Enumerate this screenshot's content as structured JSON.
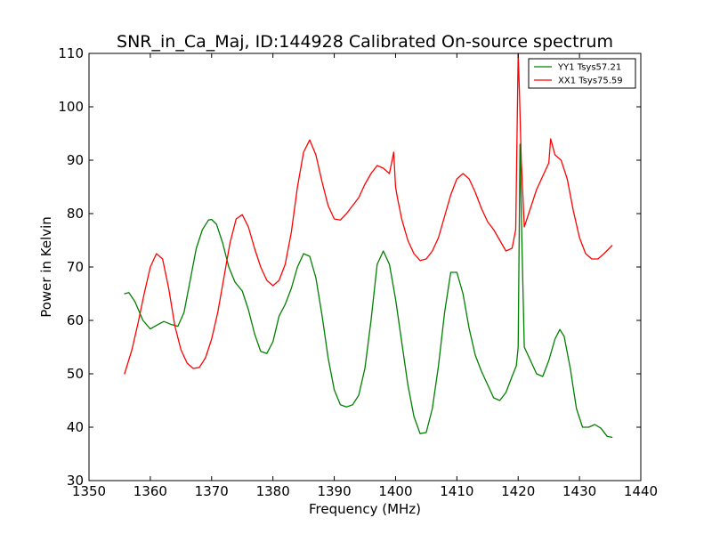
{
  "chart_data": {
    "type": "line",
    "title": "SNR_in_Ca_Maj, ID:144928 Calibrated On-source spectrum",
    "xlabel": "Frequency (MHz)",
    "ylabel": "Power in Kelvin",
    "xlim": [
      1350,
      1440
    ],
    "ylim": [
      30,
      110
    ],
    "xticks": [
      1350,
      1360,
      1370,
      1380,
      1390,
      1400,
      1410,
      1420,
      1430,
      1440
    ],
    "yticks": [
      30,
      40,
      50,
      60,
      70,
      80,
      90,
      100,
      110
    ],
    "grid": false,
    "legend_position": "top-right",
    "series": [
      {
        "name": "YY1 Tsys57.21",
        "color": "#008000",
        "x": [
          1355.8,
          1356.5,
          1357.5,
          1358.8,
          1360.0,
          1361.2,
          1362.2,
          1363.5,
          1364.5,
          1365.5,
          1366.5,
          1367.5,
          1368.5,
          1369.5,
          1370.0,
          1370.8,
          1371.8,
          1372.8,
          1373.8,
          1375.0,
          1376.0,
          1377.0,
          1378.0,
          1379.0,
          1380.0,
          1381.0,
          1382.0,
          1383.0,
          1384.0,
          1385.0,
          1386.0,
          1387.0,
          1388.0,
          1389.0,
          1390.0,
          1391.0,
          1392.0,
          1393.0,
          1394.0,
          1395.0,
          1396.0,
          1397.0,
          1398.0,
          1399.0,
          1400.0,
          1401.0,
          1402.0,
          1403.0,
          1404.0,
          1405.0,
          1406.0,
          1407.0,
          1408.0,
          1409.0,
          1410.0,
          1411.0,
          1412.0,
          1413.0,
          1414.0,
          1415.0,
          1416.0,
          1417.0,
          1418.0,
          1419.0,
          1419.7,
          1420.0,
          1420.3,
          1420.6,
          1421.0,
          1422.0,
          1423.0,
          1424.0,
          1425.0,
          1426.0,
          1426.8,
          1427.5,
          1428.5,
          1429.5,
          1430.5,
          1431.5,
          1432.5,
          1433.5,
          1434.5,
          1435.3
        ],
        "y": [
          65.0,
          65.2,
          63.5,
          60.0,
          58.4,
          59.2,
          59.8,
          59.2,
          58.9,
          61.5,
          67.5,
          73.5,
          77.0,
          78.8,
          78.9,
          78.0,
          74.5,
          70.0,
          67.2,
          65.5,
          62.0,
          57.5,
          54.2,
          53.8,
          56.0,
          60.8,
          63.0,
          66.0,
          70.0,
          72.5,
          72.0,
          68.0,
          61.0,
          53.0,
          47.0,
          44.2,
          43.8,
          44.2,
          46.0,
          51.0,
          60.0,
          70.5,
          73.0,
          70.5,
          64.0,
          56.0,
          48.0,
          42.0,
          38.8,
          39.0,
          43.5,
          51.5,
          61.5,
          69.0,
          69.0,
          65.0,
          58.5,
          53.5,
          50.5,
          48.0,
          45.5,
          45.0,
          46.5,
          49.5,
          51.5,
          55.0,
          93.0,
          75.0,
          55.0,
          52.5,
          50.0,
          49.5,
          52.5,
          56.5,
          58.3,
          57.0,
          51.0,
          43.5,
          40.0,
          40.0,
          40.5,
          39.8,
          38.3,
          38.1
        ]
      },
      {
        "name": "XX1 Tsys75.59",
        "color": "#ff0000",
        "x": [
          1355.8,
          1357.0,
          1358.0,
          1359.0,
          1360.0,
          1361.0,
          1362.0,
          1363.0,
          1364.0,
          1365.0,
          1366.0,
          1367.0,
          1368.0,
          1369.0,
          1370.0,
          1371.0,
          1372.0,
          1373.0,
          1374.0,
          1375.0,
          1376.0,
          1377.0,
          1378.0,
          1379.0,
          1380.0,
          1381.0,
          1382.0,
          1383.0,
          1384.0,
          1385.0,
          1386.0,
          1387.0,
          1388.0,
          1389.0,
          1390.0,
          1391.0,
          1392.0,
          1393.0,
          1394.0,
          1395.0,
          1396.0,
          1397.0,
          1398.0,
          1399.0,
          1399.7,
          1400.0,
          1400.3,
          1401.0,
          1402.0,
          1403.0,
          1404.0,
          1405.0,
          1406.0,
          1407.0,
          1408.0,
          1409.0,
          1410.0,
          1411.0,
          1412.0,
          1413.0,
          1414.0,
          1415.0,
          1416.0,
          1417.0,
          1418.0,
          1419.0,
          1419.6,
          1420.0,
          1420.2,
          1420.5,
          1421.0,
          1422.0,
          1423.0,
          1424.0,
          1425.0,
          1425.3,
          1426.0,
          1427.0,
          1428.0,
          1429.0,
          1430.0,
          1431.0,
          1432.0,
          1433.0,
          1434.0,
          1435.3
        ],
        "y": [
          50.0,
          54.5,
          59.5,
          65.0,
          70.0,
          72.5,
          71.5,
          66.0,
          59.0,
          54.5,
          52.0,
          51.0,
          51.2,
          53.0,
          56.5,
          61.5,
          68.0,
          74.5,
          79.0,
          79.8,
          77.5,
          73.5,
          70.0,
          67.5,
          66.5,
          67.5,
          70.5,
          76.5,
          85.0,
          91.5,
          93.8,
          91.0,
          86.0,
          81.5,
          79.0,
          78.8,
          80.0,
          81.5,
          83.0,
          85.5,
          87.5,
          89.0,
          88.5,
          87.5,
          91.5,
          85.0,
          83.0,
          79.0,
          75.0,
          72.5,
          71.2,
          71.5,
          73.0,
          75.5,
          79.5,
          83.5,
          86.5,
          87.5,
          86.5,
          84.0,
          81.0,
          78.5,
          77.0,
          75.0,
          73.0,
          73.5,
          77.0,
          110.0,
          103.0,
          90.0,
          77.5,
          81.0,
          84.5,
          87.0,
          89.5,
          94.0,
          91.0,
          90.0,
          86.5,
          80.5,
          75.5,
          72.5,
          71.5,
          71.5,
          72.5,
          74.0
        ]
      }
    ]
  }
}
